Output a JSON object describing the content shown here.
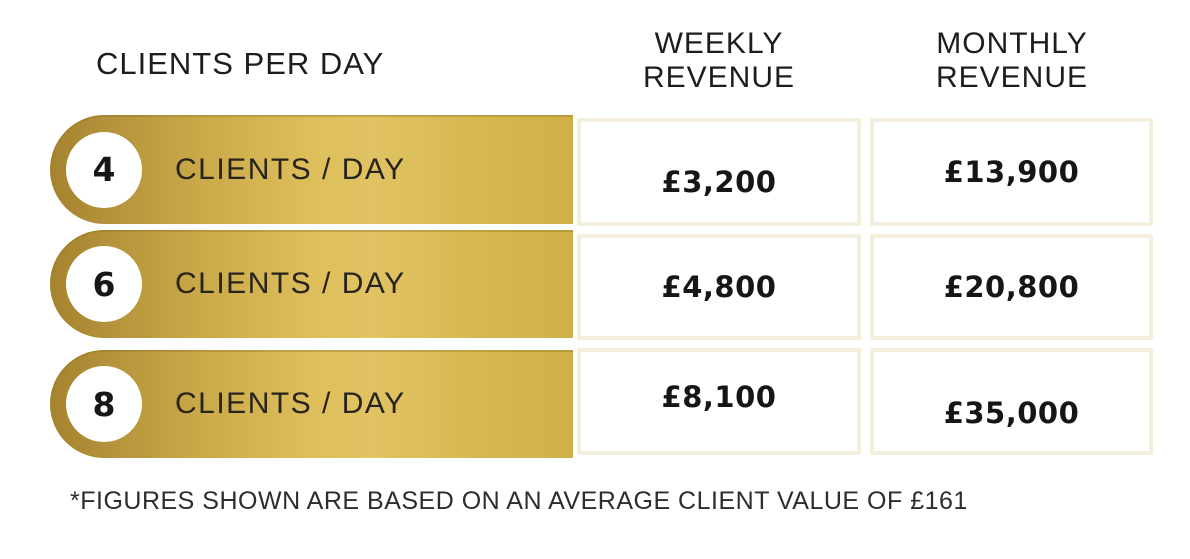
{
  "table": {
    "header_left": "CLIENTS PER DAY",
    "columns": [
      {
        "line1": "WEEKLY",
        "line2": "REVENUE"
      },
      {
        "line1": "MONTHLY",
        "line2": "REVENUE"
      }
    ],
    "rows": [
      {
        "clients": "4",
        "label": "CLIENTS / DAY",
        "weekly": "£3,200",
        "monthly": "£13,900"
      },
      {
        "clients": "6",
        "label": "CLIENTS / DAY",
        "weekly": "£4,800",
        "monthly": "£20,800"
      },
      {
        "clients": "8",
        "label": "CLIENTS / DAY",
        "weekly": "£8,100",
        "monthly": "£35,000"
      }
    ],
    "footnote": "*FIGURES SHOWN ARE BASED ON AN AVERAGE CLIENT VALUE OF £161"
  },
  "colors": {
    "gold_dark": "#a5832e",
    "gold_light": "#e0c263",
    "gold_right": "#cfb148",
    "cell_border": "#f4efdd",
    "cell_background": "#ffffff",
    "text": "#1d1d1b",
    "page_background": "#ffffff"
  },
  "chart_data": {
    "type": "table",
    "title": "CLIENTS PER DAY",
    "columns": [
      "CLIENTS PER DAY",
      "WEEKLY REVENUE",
      "MONTHLY REVENUE"
    ],
    "rows": [
      {
        "clients_per_day": 4,
        "weekly_revenue_gbp": 3200,
        "monthly_revenue_gbp": 13900
      },
      {
        "clients_per_day": 6,
        "weekly_revenue_gbp": 4800,
        "monthly_revenue_gbp": 20800
      },
      {
        "clients_per_day": 8,
        "weekly_revenue_gbp": 8100,
        "monthly_revenue_gbp": 35000
      }
    ],
    "footnote": "*FIGURES SHOWN ARE BASED ON AN AVERAGE CLIENT VALUE OF £161",
    "average_client_value_gbp": 161,
    "currency": "GBP"
  }
}
